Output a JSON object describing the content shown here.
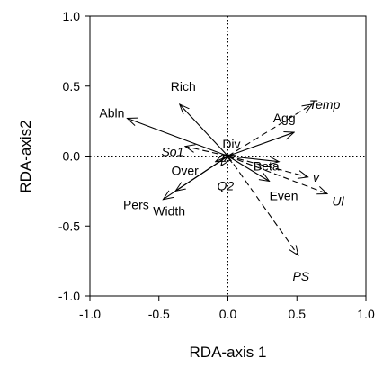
{
  "chart_data": {
    "type": "scatter",
    "subtype": "rda-biplot",
    "title": "",
    "xlabel": "RDA-axis 1",
    "ylabel": "RDA-axis2",
    "xlim": [
      -1.0,
      1.0
    ],
    "ylim": [
      -1.0,
      1.0
    ],
    "x_ticks": [
      -1.0,
      -0.5,
      0.0,
      0.5,
      1.0
    ],
    "y_ticks": [
      -1.0,
      -0.5,
      0.0,
      0.5,
      1.0
    ],
    "x_tick_labels": [
      "-1.0",
      "-0.5",
      "0.0",
      "0.5",
      "1.0"
    ],
    "y_tick_labels": [
      "-1.0",
      "-0.5",
      "0.0",
      "0.5",
      "1.0"
    ],
    "grid": false,
    "reference_lines": "dotted lines at x = 0 and y = 0",
    "vectors": [
      {
        "label": "Abln",
        "style": "solid",
        "italic": false,
        "x": -0.73,
        "y": 0.27
      },
      {
        "label": "Rich",
        "style": "solid",
        "italic": false,
        "x": -0.35,
        "y": 0.37
      },
      {
        "label": "So1",
        "style": "dashed",
        "italic": true,
        "x": -0.31,
        "y": 0.07
      },
      {
        "label": "Over",
        "style": "solid",
        "italic": false,
        "x": -0.09,
        "y": -0.04
      },
      {
        "label": "Q2",
        "style": "dashed",
        "italic": true,
        "x": -0.05,
        "y": -0.07
      },
      {
        "label": "Pers",
        "style": "solid",
        "italic": false,
        "x": -0.47,
        "y": -0.31
      },
      {
        "label": "Width",
        "style": "solid",
        "italic": false,
        "x": -0.38,
        "y": -0.25
      },
      {
        "label": "Div",
        "style": "solid",
        "italic": false,
        "x": -0.02,
        "y": 0.01
      },
      {
        "label": "Temp",
        "style": "dashed",
        "italic": true,
        "x": 0.61,
        "y": 0.37
      },
      {
        "label": "Agg",
        "style": "solid",
        "italic": false,
        "x": 0.48,
        "y": 0.17
      },
      {
        "label": "Beta",
        "style": "solid",
        "italic": false,
        "x": 0.37,
        "y": -0.04
      },
      {
        "label": "v",
        "style": "dashed",
        "italic": true,
        "x": 0.58,
        "y": -0.15
      },
      {
        "label": "Even",
        "style": "solid",
        "italic": false,
        "x": 0.3,
        "y": -0.18
      },
      {
        "label": "Ul",
        "style": "dashed",
        "italic": true,
        "x": 0.72,
        "y": -0.27
      },
      {
        "label": "PS",
        "style": "dashed",
        "italic": true,
        "x": 0.51,
        "y": -0.71
      }
    ]
  },
  "colors": {
    "axis": "#000000",
    "vector": "#000000",
    "background": "#ffffff"
  }
}
